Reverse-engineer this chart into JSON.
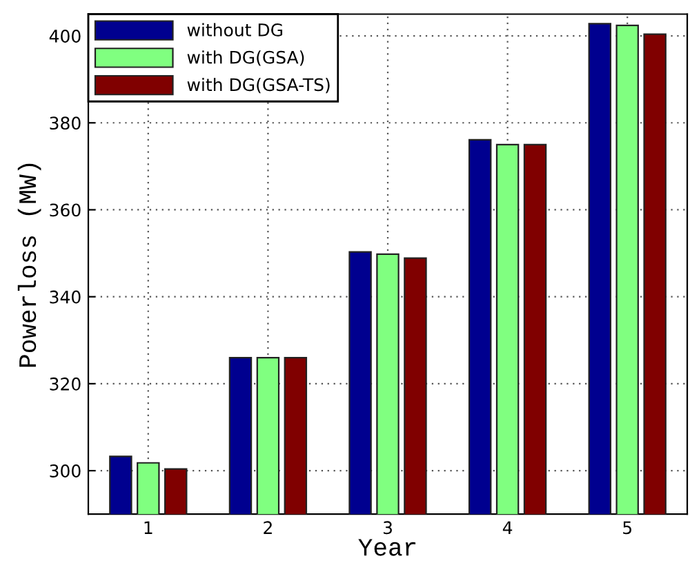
{
  "chart_data": {
    "type": "bar",
    "xlabel": "Year",
    "ylabel": "Powerloss (MW)",
    "categories": [
      "1",
      "2",
      "3",
      "4",
      "5"
    ],
    "series": [
      {
        "name": "without DG",
        "color": "#00008f",
        "values": [
          303.3,
          326.0,
          350.3,
          376.1,
          402.8
        ]
      },
      {
        "name": "with DG(GSA)",
        "color": "#80ff80",
        "values": [
          301.8,
          326.0,
          349.8,
          375.0,
          402.4
        ]
      },
      {
        "name": "with DG(GSA-TS)",
        "color": "#800000",
        "values": [
          300.4,
          326.0,
          348.9,
          375.0,
          400.4
        ]
      }
    ],
    "ylim": [
      290,
      405
    ],
    "yticks": [
      300,
      320,
      340,
      360,
      380,
      400
    ],
    "grid": true,
    "legend": "top left"
  }
}
